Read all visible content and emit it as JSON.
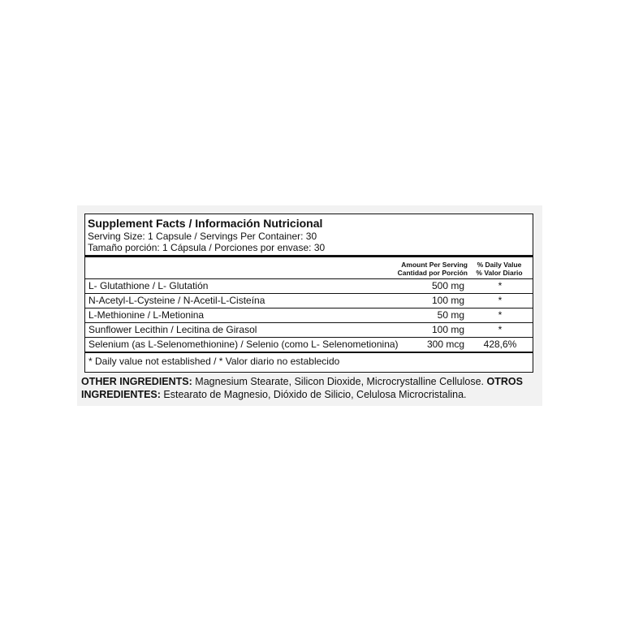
{
  "header": {
    "title": "Supplement Facts / Información Nutricional",
    "serving_en": "Serving Size: 1 Capsule / Servings Per Container: 30",
    "serving_es": "Tamaño porción: 1 Cápsula / Porciones por envase: 30"
  },
  "table": {
    "columns": {
      "amount_en": "Amount Per Serving",
      "amount_es": "Cantidad por Porción",
      "dv_en": "% Daily Value",
      "dv_es": "% Valor Diario"
    },
    "rows": [
      [
        "L- Glutathione  / L- Glutatión",
        "500 mg",
        "*"
      ],
      [
        "N-Acetyl-L-Cysteine / N-Acetil-L-Cisteína",
        "100 mg",
        "*"
      ],
      [
        "L-Methionine / L-Metionina",
        "50 mg",
        "*"
      ],
      [
        "Sunflower Lecithin / Lecitina de Girasol",
        "100 mg",
        "*"
      ],
      [
        "Selenium (as L-Selenomethionine) / Selenio (como L- Selenometionina)",
        "300 mcg",
        "428,6%"
      ]
    ],
    "footnote": "* Daily value not established / * Valor diario no establecido"
  },
  "other_ingredients": {
    "label_en": "OTHER INGREDIENTS:",
    "text_en": "Magnesium Stearate, Silicon Dioxide, Microcrystalline Cellulose.",
    "label_es": "OTROS INGREDIENTES:",
    "text_es": "Estearato de Magnesio, Dióxido de Silicio, Celulosa Microcristalina."
  }
}
